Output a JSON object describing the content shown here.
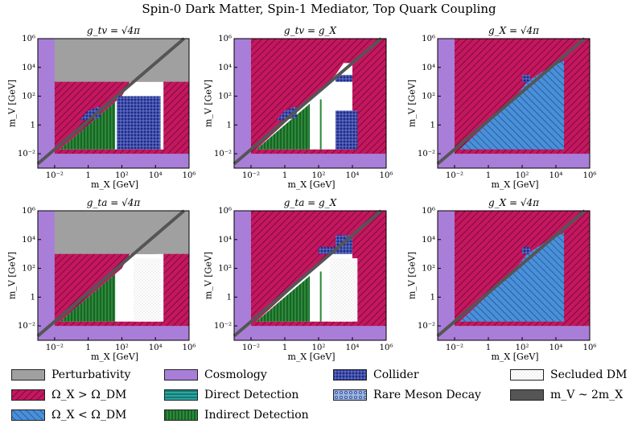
{
  "suptitle": "Spin-0 Dark Matter, Spin-1 Mediator, Top Quark Coupling",
  "axes": {
    "xlabel": "m_X [GeV]",
    "ylabel": "m_V [GeV]",
    "xticks": [
      "10⁻²",
      "1",
      "10²",
      "10⁴",
      "10⁶"
    ],
    "yticks": [
      "10⁻²",
      "1",
      "10²",
      "10⁴",
      "10⁶"
    ]
  },
  "colors": {
    "perturbativity": "#a0a0a0",
    "overabundant": "#c4175f",
    "underabundant": "#4a90d9",
    "cosmology": "#a97ed8",
    "direct": "#2aa7a0",
    "indirect": "#2b8a3a",
    "collider": "#1c2a8a",
    "meson": "#9fb6e0",
    "secluded": "#e4e4e4",
    "line": "#555555"
  },
  "chart_data": [
    {
      "type": "heatmap",
      "title": "g_tv = √(4π)",
      "xlabel": "m_X [GeV]",
      "ylabel": "m_V [GeV]",
      "xscale": "log",
      "yscale": "log",
      "xlim": [
        0.001,
        1000000
      ],
      "ylim": [
        0.001,
        1000000
      ],
      "line": "m_V ~ 2 m_X",
      "regions": [
        "Cosmology",
        "Perturbativity",
        "Ω_X > Ω_DM",
        "Collider",
        "Indirect Detection",
        "m_V ~ 2m_X"
      ]
    },
    {
      "type": "heatmap",
      "title": "g_tv = g_X",
      "xlabel": "m_X [GeV]",
      "ylabel": "m_V [GeV]",
      "xscale": "log",
      "yscale": "log",
      "xlim": [
        0.001,
        1000000
      ],
      "ylim": [
        0.001,
        1000000
      ],
      "line": "m_V ~ 2 m_X",
      "regions": [
        "Cosmology",
        "Ω_X > Ω_DM",
        "Collider",
        "Indirect Detection",
        "m_V ~ 2m_X"
      ]
    },
    {
      "type": "heatmap",
      "title": "g_X = √(4π)",
      "xlabel": "m_X [GeV]",
      "ylabel": "m_V [GeV]",
      "xscale": "log",
      "yscale": "log",
      "xlim": [
        0.001,
        1000000
      ],
      "ylim": [
        0.001,
        1000000
      ],
      "line": "m_V ~ 2 m_X",
      "regions": [
        "Cosmology",
        "Ω_X > Ω_DM",
        "Ω_X < Ω_DM",
        "Collider",
        "m_V ~ 2m_X"
      ]
    },
    {
      "type": "heatmap",
      "title": "g_ta = √(4π)",
      "xlabel": "m_X [GeV]",
      "ylabel": "m_V [GeV]",
      "xscale": "log",
      "yscale": "log",
      "xlim": [
        0.001,
        1000000
      ],
      "ylim": [
        0.001,
        1000000
      ],
      "line": "m_V ~ 2 m_X",
      "regions": [
        "Cosmology",
        "Perturbativity",
        "Ω_X > Ω_DM",
        "Collider",
        "Indirect Detection",
        "Secluded DM",
        "m_V ~ 2m_X"
      ]
    },
    {
      "type": "heatmap",
      "title": "g_ta = g_X",
      "xlabel": "m_X [GeV]",
      "ylabel": "m_V [GeV]",
      "xscale": "log",
      "yscale": "log",
      "xlim": [
        0.001,
        1000000
      ],
      "ylim": [
        0.001,
        1000000
      ],
      "line": "m_V ~ 2 m_X",
      "regions": [
        "Cosmology",
        "Ω_X > Ω_DM",
        "Collider",
        "Indirect Detection",
        "Secluded DM",
        "m_V ~ 2m_X"
      ]
    },
    {
      "type": "heatmap",
      "title": "g_X = √(4π)",
      "xlabel": "m_X [GeV]",
      "ylabel": "m_V [GeV]",
      "xscale": "log",
      "yscale": "log",
      "xlim": [
        0.001,
        1000000
      ],
      "ylim": [
        0.001,
        1000000
      ],
      "line": "m_V ~ 2 m_X",
      "regions": [
        "Cosmology",
        "Ω_X > Ω_DM",
        "Ω_X < Ω_DM",
        "Collider",
        "m_V ~ 2m_X"
      ]
    }
  ],
  "panel_titles": [
    "g_tv = √4π",
    "g_tv = g_X",
    "g_X = √4π",
    "g_ta = √4π",
    "g_ta = g_X",
    "g_X = √4π"
  ],
  "legend": [
    {
      "key": "perturbativity",
      "label": "Perturbativity"
    },
    {
      "key": "overabundant",
      "label": "Ω_X > Ω_DM"
    },
    {
      "key": "underabundant",
      "label": "Ω_X < Ω_DM"
    },
    {
      "key": "cosmology",
      "label": "Cosmology"
    },
    {
      "key": "direct",
      "label": "Direct Detection"
    },
    {
      "key": "indirect",
      "label": "Indirect Detection"
    },
    {
      "key": "collider",
      "label": "Collider"
    },
    {
      "key": "meson",
      "label": "Rare Meson Decay"
    },
    {
      "key": "secluded",
      "label": "Secluded DM"
    },
    {
      "key": "line",
      "label": "m_V ~ 2m_X"
    }
  ]
}
